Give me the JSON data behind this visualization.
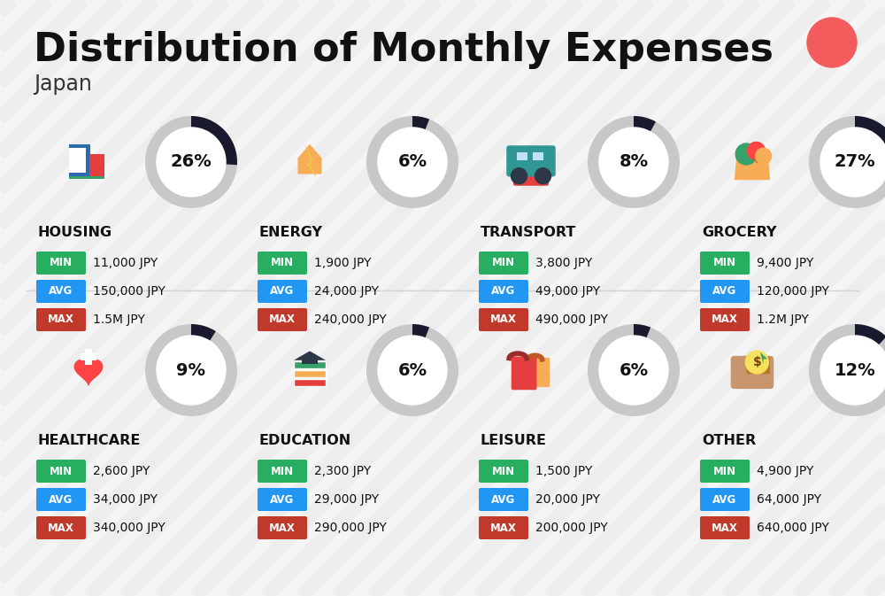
{
  "title": "Distribution of Monthly Expenses",
  "subtitle": "Japan",
  "bg_color": "#f5f5f5",
  "red_dot_color": "#f25c5c",
  "categories": [
    {
      "name": "HOUSING",
      "pct": 26,
      "min": "11,000 JPY",
      "avg": "150,000 JPY",
      "max": "1.5M JPY",
      "col": 0,
      "row": 0
    },
    {
      "name": "ENERGY",
      "pct": 6,
      "min": "1,900 JPY",
      "avg": "24,000 JPY",
      "max": "240,000 JPY",
      "col": 1,
      "row": 0
    },
    {
      "name": "TRANSPORT",
      "pct": 8,
      "min": "3,800 JPY",
      "avg": "49,000 JPY",
      "max": "490,000 JPY",
      "col": 2,
      "row": 0
    },
    {
      "name": "GROCERY",
      "pct": 27,
      "min": "9,400 JPY",
      "avg": "120,000 JPY",
      "max": "1.2M JPY",
      "col": 3,
      "row": 0
    },
    {
      "name": "HEALTHCARE",
      "pct": 9,
      "min": "2,600 JPY",
      "avg": "34,000 JPY",
      "max": "340,000 JPY",
      "col": 0,
      "row": 1
    },
    {
      "name": "EDUCATION",
      "pct": 6,
      "min": "2,300 JPY",
      "avg": "29,000 JPY",
      "max": "290,000 JPY",
      "col": 1,
      "row": 1
    },
    {
      "name": "LEISURE",
      "pct": 6,
      "min": "1,500 JPY",
      "avg": "20,000 JPY",
      "max": "200,000 JPY",
      "col": 2,
      "row": 1
    },
    {
      "name": "OTHER",
      "pct": 12,
      "min": "4,900 JPY",
      "avg": "64,000 JPY",
      "max": "640,000 JPY",
      "col": 3,
      "row": 1
    }
  ],
  "min_color": "#27ae60",
  "avg_color": "#2196f3",
  "max_color": "#c0392b",
  "donut_bg": "#c8c8c8",
  "donut_fg": "#1a1a2e",
  "label_color": "#111111",
  "value_color": "#111111",
  "stripe_color": "#e8e8e8",
  "divider_color": "#d0d0d0"
}
